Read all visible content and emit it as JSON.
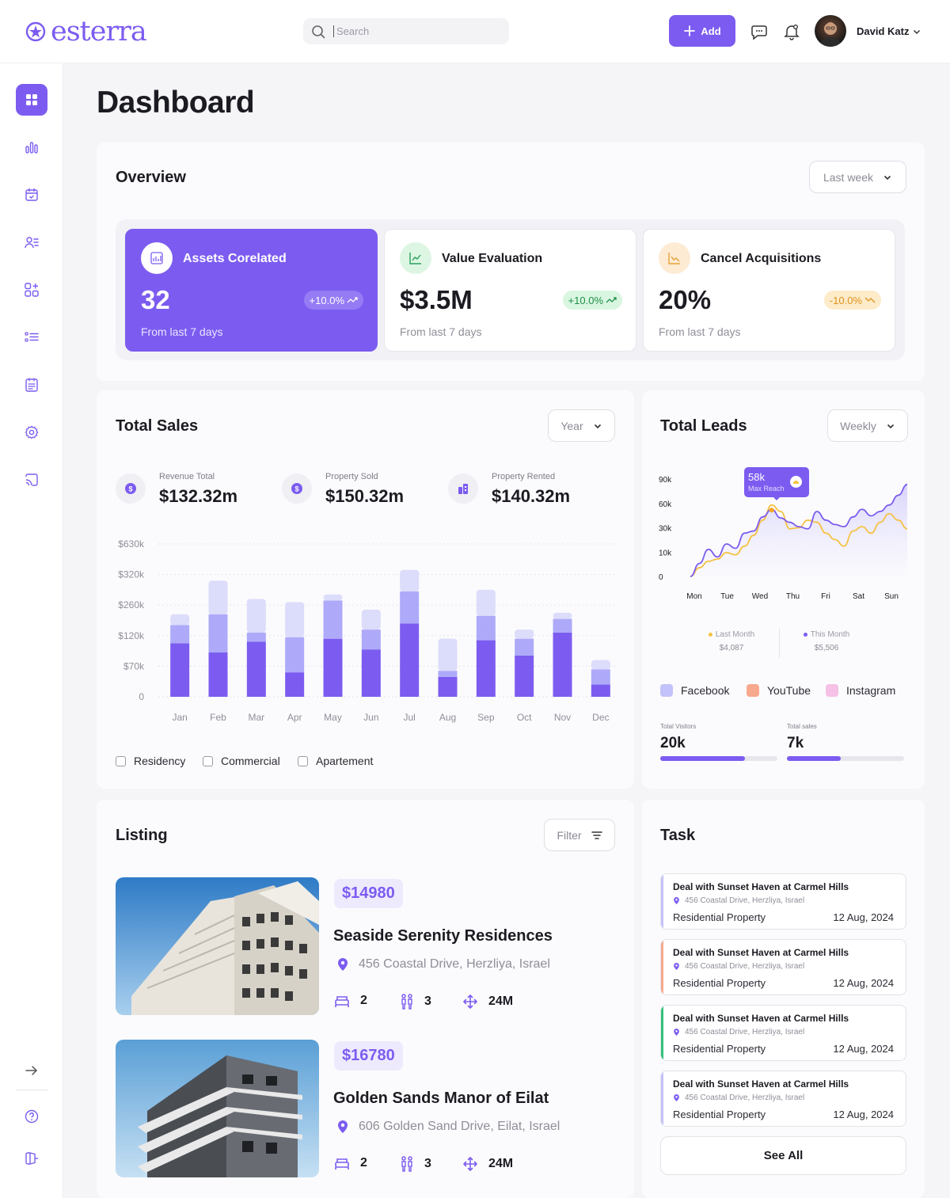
{
  "brand": {
    "name": "esterra",
    "accent": "#7c5cf0"
  },
  "header": {
    "search_placeholder": "Search",
    "add_label": "Add",
    "user_name": "David Katz"
  },
  "page": {
    "title": "Dashboard"
  },
  "overview": {
    "title": "Overview",
    "period": "Last week",
    "cards": [
      {
        "title": "Assets Corelated",
        "value": "32",
        "change": "+10.0%",
        "sub": "From last 7 days",
        "icon": "chart-icon"
      },
      {
        "title": "Value Evaluation",
        "value": "$3.5M",
        "change": "+10.0%",
        "sub": "From last 7 days",
        "icon": "trend-up-icon"
      },
      {
        "title": "Cancel Acquisitions",
        "value": "20%",
        "change": "-10.0%",
        "sub": "From last 7 days",
        "icon": "trend-down-icon"
      }
    ]
  },
  "sales": {
    "title": "Total Sales",
    "period": "Year",
    "stats": [
      {
        "label": "Revenue Total",
        "value": "$132.32m",
        "icon": "coin-icon"
      },
      {
        "label": "Property Sold",
        "value": "$150.32m",
        "icon": "coin-icon"
      },
      {
        "label": "Property Rented",
        "value": "$140.32m",
        "icon": "building-icon"
      }
    ],
    "legend": [
      "Residency",
      "Commercial",
      "Apartement"
    ]
  },
  "leads": {
    "title": "Total Leads",
    "period": "Weekly",
    "tooltip": {
      "value": "58k",
      "label": "Max Reach"
    },
    "summary": [
      {
        "label": "Last Month",
        "value": "$4,087",
        "color": "#f5c242"
      },
      {
        "label": "This Month",
        "value": "$5,506",
        "color": "#7c5cf0"
      }
    ],
    "sources": [
      {
        "name": "Facebook",
        "color": "#c4c2fb"
      },
      {
        "name": "YouTube",
        "color": "#f7a98d"
      },
      {
        "name": "Instagram",
        "color": "#f5c1e6"
      }
    ],
    "totals": [
      {
        "label": "Total Visitors",
        "value": "20k",
        "fill": 0.72
      },
      {
        "label": "Total sales",
        "value": "7k",
        "fill": 0.46
      }
    ]
  },
  "chart_data": [
    {
      "type": "bar",
      "stacked": true,
      "categories": [
        "Jan",
        "Feb",
        "Mar",
        "Apr",
        "May",
        "Jun",
        "Jul",
        "Aug",
        "Sep",
        "Oct",
        "Nov",
        "Dec"
      ],
      "y_ticks": [
        "$630k",
        "$320k",
        "$260k",
        "$120k",
        "$70k",
        "0"
      ],
      "series": [
        {
          "name": "Residency",
          "color": "#7c5cf0",
          "values": [
            0.35,
            0.29,
            0.36,
            0.16,
            0.38,
            0.31,
            0.48,
            0.13,
            0.37,
            0.27,
            0.42,
            0.08
          ]
        },
        {
          "name": "Commercial",
          "color": "#aeaaf9",
          "values": [
            0.12,
            0.25,
            0.06,
            0.23,
            0.25,
            0.13,
            0.21,
            0.04,
            0.16,
            0.11,
            0.09,
            0.1
          ]
        },
        {
          "name": "Apartement",
          "color": "#dcdcfb",
          "values": [
            0.07,
            0.22,
            0.22,
            0.23,
            0.04,
            0.13,
            0.14,
            0.21,
            0.17,
            0.06,
            0.04,
            0.06
          ]
        }
      ],
      "y_note": "values are fractions of chart height (axis ticks are non-linear)"
    },
    {
      "type": "line",
      "x_ticks": [
        "Mon",
        "Tue",
        "Wed",
        "Thu",
        "Fri",
        "Sat",
        "Sun"
      ],
      "y_ticks": [
        "90k",
        "60k",
        "30k",
        "10k",
        "0"
      ],
      "series": [
        {
          "name": "This Month",
          "color": "#7c5cf0",
          "values": [
            0,
            12,
            25,
            18,
            30,
            26,
            40,
            42,
            55,
            62,
            54,
            50,
            46,
            44,
            60,
            52,
            48,
            46,
            55,
            62,
            56,
            60,
            66,
            75,
            85
          ]
        },
        {
          "name": "Last Month",
          "color": "#f5c242",
          "values": [
            0,
            8,
            14,
            16,
            22,
            20,
            28,
            38,
            52,
            66,
            60,
            44,
            45,
            52,
            50,
            40,
            34,
            28,
            42,
            46,
            40,
            50,
            58,
            52,
            44
          ]
        }
      ]
    }
  ],
  "listing": {
    "title": "Listing",
    "filter_label": "Filter",
    "items": [
      {
        "price": "$14980",
        "name": "Seaside Serenity Residences",
        "address": "456 Coastal Drive, Herzliya, Israel",
        "beds": "2",
        "baths": "3",
        "area": "24M"
      },
      {
        "price": "$16780",
        "name": "Golden Sands Manor of Eilat",
        "address": "606 Golden Sand Drive, Eilat, Israel",
        "beds": "2",
        "baths": "3",
        "area": "24M"
      }
    ]
  },
  "tasks": {
    "title": "Task",
    "see_all": "See All",
    "items": [
      {
        "title": "Deal with Sunset Haven at Carmel Hills",
        "address": "456 Coastal Drive, Herzliya, Israel",
        "type": "Residential Property",
        "date": "12 Aug, 2024",
        "color": "#c4c2fb"
      },
      {
        "title": "Deal with Sunset Haven at Carmel Hills",
        "address": "456 Coastal Drive, Herzliya, Israel",
        "type": "Residential Property",
        "date": "12 Aug, 2024",
        "color": "#f7a98d"
      },
      {
        "title": "Deal with Sunset Haven at Carmel Hills",
        "address": "456 Coastal Drive, Herzliya, Israel",
        "type": "Residential Property",
        "date": "12 Aug, 2024",
        "color": "#35c27a"
      },
      {
        "title": "Deal with Sunset Haven at Carmel Hills",
        "address": "456 Coastal Drive, Herzliya, Israel",
        "type": "Residential Property",
        "date": "12 Aug, 2024",
        "color": "#c4c2fb"
      }
    ]
  }
}
